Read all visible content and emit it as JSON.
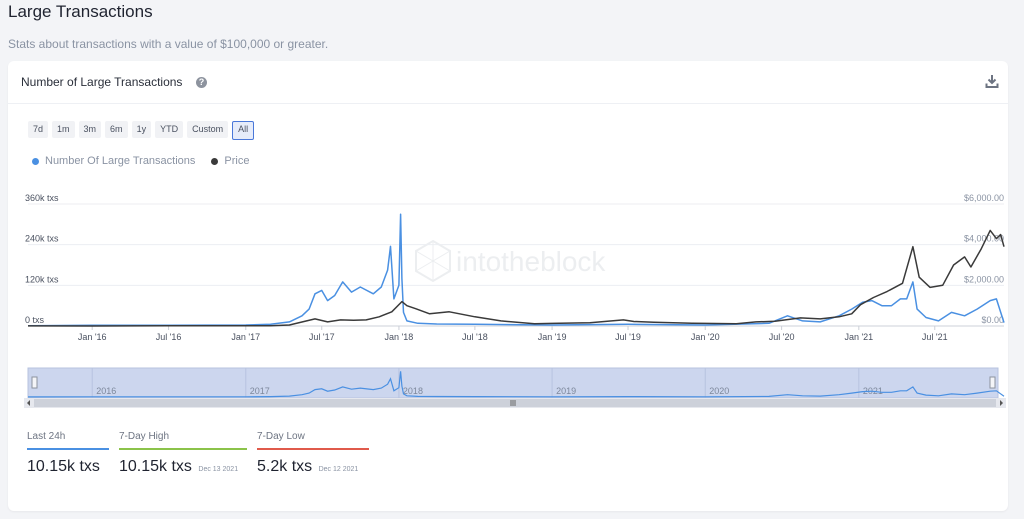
{
  "page": {
    "title": "Large Transactions",
    "subtitle": "Stats about transactions with a value of $100,000 or greater."
  },
  "card": {
    "title": "Number of Large Transactions",
    "help_icon": "question-circle-icon",
    "download_icon": "download-icon"
  },
  "range_buttons": [
    "7d",
    "1m",
    "3m",
    "6m",
    "1y",
    "YTD",
    "Custom",
    "All"
  ],
  "range_selected": "All",
  "watermark": "intotheblock",
  "legend": [
    {
      "label": "Number Of Large Transactions",
      "color": "#4a90e2"
    },
    {
      "label": "Price",
      "color": "#3a3a3a"
    }
  ],
  "chart_data": {
    "type": "line",
    "x_ticks": [
      "Jan '16",
      "Jul '16",
      "Jan '17",
      "Jul '17",
      "Jan '18",
      "Jul '18",
      "Jan '19",
      "Jul '19",
      "Jan '20",
      "Jul '20",
      "Jan '21",
      "Jul '21"
    ],
    "y_left_ticks": [
      "0 txs",
      "120k txs",
      "240k txs",
      "360k txs"
    ],
    "y_left_range": [
      0,
      360000
    ],
    "y_right_ticks": [
      "$0.00",
      "$2,000.00",
      "$4,000.00",
      "$6,000.00"
    ],
    "y_right_range": [
      0,
      6000
    ],
    "grid": true,
    "series": [
      {
        "name": "Number Of Large Transactions",
        "color": "#4a90e2",
        "axis": "left",
        "x": [
          "2015-08-01",
          "2016-01-01",
          "2016-07-01",
          "2017-01-01",
          "2017-03-01",
          "2017-04-15",
          "2017-05-15",
          "2017-06-01",
          "2017-06-15",
          "2017-07-01",
          "2017-07-15",
          "2017-08-01",
          "2017-08-20",
          "2017-09-10",
          "2017-10-01",
          "2017-11-01",
          "2017-11-20",
          "2017-12-05",
          "2017-12-12",
          "2017-12-20",
          "2018-01-01",
          "2018-01-05",
          "2018-01-08",
          "2018-01-12",
          "2018-01-20",
          "2018-02-15",
          "2018-04-01",
          "2018-07-01",
          "2019-01-01",
          "2019-07-01",
          "2020-01-01",
          "2020-06-01",
          "2020-07-15",
          "2020-08-20",
          "2020-10-01",
          "2020-11-15",
          "2020-12-15",
          "2021-01-10",
          "2021-02-01",
          "2021-02-25",
          "2021-03-20",
          "2021-04-10",
          "2021-04-25",
          "2021-05-10",
          "2021-05-20",
          "2021-06-10",
          "2021-07-10",
          "2021-08-10",
          "2021-09-10",
          "2021-10-10",
          "2021-11-10",
          "2021-11-25",
          "2021-12-13"
        ],
        "values": [
          1000,
          2000,
          2000,
          3000,
          5000,
          12000,
          30000,
          50000,
          95000,
          105000,
          75000,
          90000,
          130000,
          100000,
          115000,
          95000,
          115000,
          165000,
          235000,
          80000,
          120000,
          330000,
          140000,
          40000,
          15000,
          8000,
          6000,
          5000,
          3000,
          5000,
          3000,
          8000,
          30000,
          15000,
          12000,
          30000,
          50000,
          70000,
          75000,
          60000,
          60000,
          80000,
          80000,
          130000,
          50000,
          25000,
          15000,
          40000,
          30000,
          50000,
          75000,
          80000,
          10150
        ]
      },
      {
        "name": "Price",
        "color": "#3a3a3a",
        "axis": "right",
        "x": [
          "2015-08-01",
          "2016-01-01",
          "2016-07-01",
          "2017-01-01",
          "2017-03-01",
          "2017-04-15",
          "2017-06-15",
          "2017-07-15",
          "2017-08-15",
          "2017-09-15",
          "2017-10-15",
          "2017-11-15",
          "2017-12-15",
          "2018-01-08",
          "2018-01-20",
          "2018-02-10",
          "2018-03-15",
          "2018-05-01",
          "2018-07-01",
          "2018-09-01",
          "2018-11-20",
          "2019-01-01",
          "2019-04-01",
          "2019-06-20",
          "2019-07-15",
          "2019-09-01",
          "2019-12-01",
          "2020-01-01",
          "2020-03-15",
          "2020-05-01",
          "2020-06-15",
          "2020-08-15",
          "2020-10-01",
          "2020-11-15",
          "2020-12-15",
          "2021-01-05",
          "2021-02-05",
          "2021-03-10",
          "2021-04-15",
          "2021-05-10",
          "2021-05-25",
          "2021-06-20",
          "2021-07-20",
          "2021-08-15",
          "2021-09-10",
          "2021-09-25",
          "2021-10-20",
          "2021-11-10",
          "2021-11-25",
          "2021-12-05",
          "2021-12-13"
        ],
        "values": [
          3,
          1,
          10,
          8,
          15,
          50,
          350,
          200,
          300,
          280,
          300,
          450,
          700,
          1200,
          1000,
          850,
          600,
          700,
          450,
          250,
          110,
          130,
          160,
          300,
          220,
          180,
          140,
          130,
          110,
          200,
          230,
          400,
          350,
          450,
          600,
          1050,
          1400,
          1700,
          2100,
          3900,
          2400,
          1900,
          2000,
          3000,
          3400,
          2900,
          3800,
          4700,
          4300,
          4500,
          3900
        ]
      }
    ]
  },
  "navigator": {
    "year_labels": [
      "2016",
      "2017",
      "2018",
      "2019",
      "2020",
      "2021"
    ]
  },
  "stats": [
    {
      "label": "Last 24h",
      "value": "10.15k txs",
      "date": "",
      "color": "#4a90e2"
    },
    {
      "label": "7-Day High",
      "value": "10.15k txs",
      "date": "Dec 13 2021",
      "color": "#8bc34a"
    },
    {
      "label": "7-Day Low",
      "value": "5.2k txs",
      "date": "Dec 12 2021",
      "color": "#e05a4b"
    }
  ]
}
